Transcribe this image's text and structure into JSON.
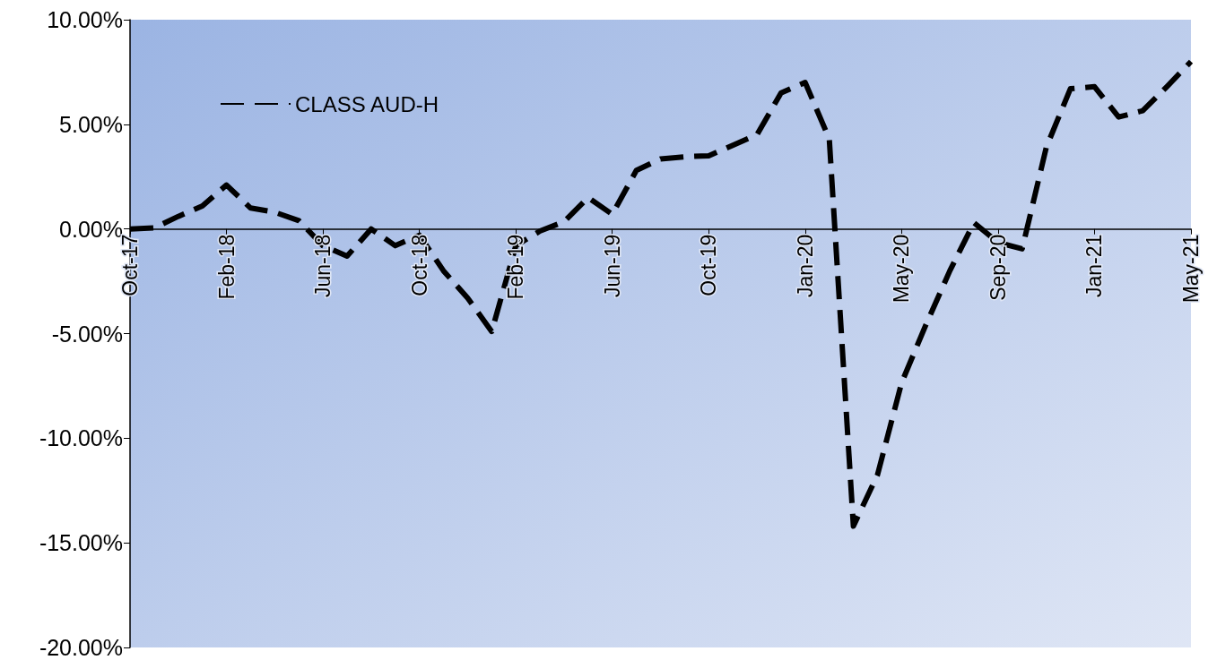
{
  "chart_data": {
    "type": "line",
    "categories": [
      "Oct-17",
      null,
      null,
      null,
      "Feb-18",
      null,
      null,
      null,
      "Jun-18",
      null,
      null,
      null,
      "Oct-18",
      null,
      null,
      null,
      "Feb-19",
      null,
      null,
      null,
      "Jun-19",
      null,
      null,
      null,
      "Oct-19",
      null,
      null,
      null,
      "Jan-20",
      null,
      null,
      null,
      "May-20",
      null,
      null,
      null,
      "Sep-20",
      null,
      null,
      null,
      "Jan-21",
      null,
      null,
      null,
      "May-21"
    ],
    "series": [
      {
        "name": "CLASS AUD-H",
        "color": "#000000",
        "values": [
          0,
          0.05,
          0.6,
          1.1,
          2.1,
          1.0,
          0.8,
          0.4,
          -0.8,
          -1.3,
          0.0,
          -0.8,
          -0.3,
          -2.0,
          -3.3,
          -4.9,
          -0.8,
          -0.1,
          0.35,
          1.5,
          0.7,
          2.8,
          3.35,
          3.45,
          3.5,
          4.0,
          4.5,
          6.5,
          7.0,
          4.3,
          -14.2,
          -11.75,
          -7.35,
          -4.6,
          -2.0,
          0.3,
          -0.65,
          -0.95,
          3.9,
          6.7,
          6.8,
          5.35,
          5.65,
          6.8,
          8.0
        ]
      }
    ],
    "ylim": [
      -20,
      10
    ],
    "yticks": [
      {
        "value": -20,
        "label": "-20.00%"
      },
      {
        "value": -15,
        "label": "-15.00%"
      },
      {
        "value": -10,
        "label": "-10.00%"
      },
      {
        "value": -5,
        "label": "-5.00%"
      },
      {
        "value": 0,
        "label": "0.00%"
      },
      {
        "value": 5,
        "label": "5.00%"
      },
      {
        "value": 10,
        "label": "10.00%"
      }
    ],
    "grid": false,
    "legend": "top left",
    "marker": "none",
    "line_style": "dashed"
  }
}
